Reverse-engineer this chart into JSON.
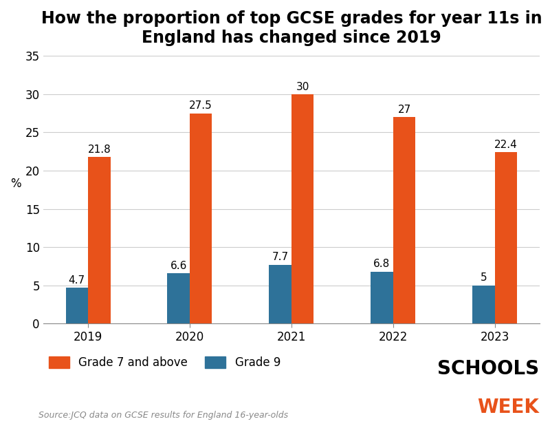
{
  "title": "How the proportion of top GCSE grades for year 11s in\nEngland has changed since 2019",
  "years": [
    "2019",
    "2020",
    "2021",
    "2022",
    "2023"
  ],
  "grade7_values": [
    21.8,
    27.5,
    30.0,
    27.0,
    22.4
  ],
  "grade9_values": [
    4.7,
    6.6,
    7.7,
    6.8,
    5.0
  ],
  "grade7_color": "#E8521A",
  "grade9_color": "#2E7299",
  "ylabel": "%",
  "ylim": [
    0,
    35
  ],
  "yticks": [
    0,
    5,
    10,
    15,
    20,
    25,
    30,
    35
  ],
  "bar_width": 0.22,
  "source_text": "Source:JCQ data on GCSE results for England 16-year-olds",
  "legend_label_7": "Grade 7 and above",
  "legend_label_9": "Grade 9",
  "background_color": "#ffffff",
  "title_fontsize": 17,
  "tick_fontsize": 12,
  "label_fontsize": 12,
  "annotation_fontsize": 11,
  "schools_week_black": "SCHOOLS",
  "schools_week_orange": "WEEK"
}
